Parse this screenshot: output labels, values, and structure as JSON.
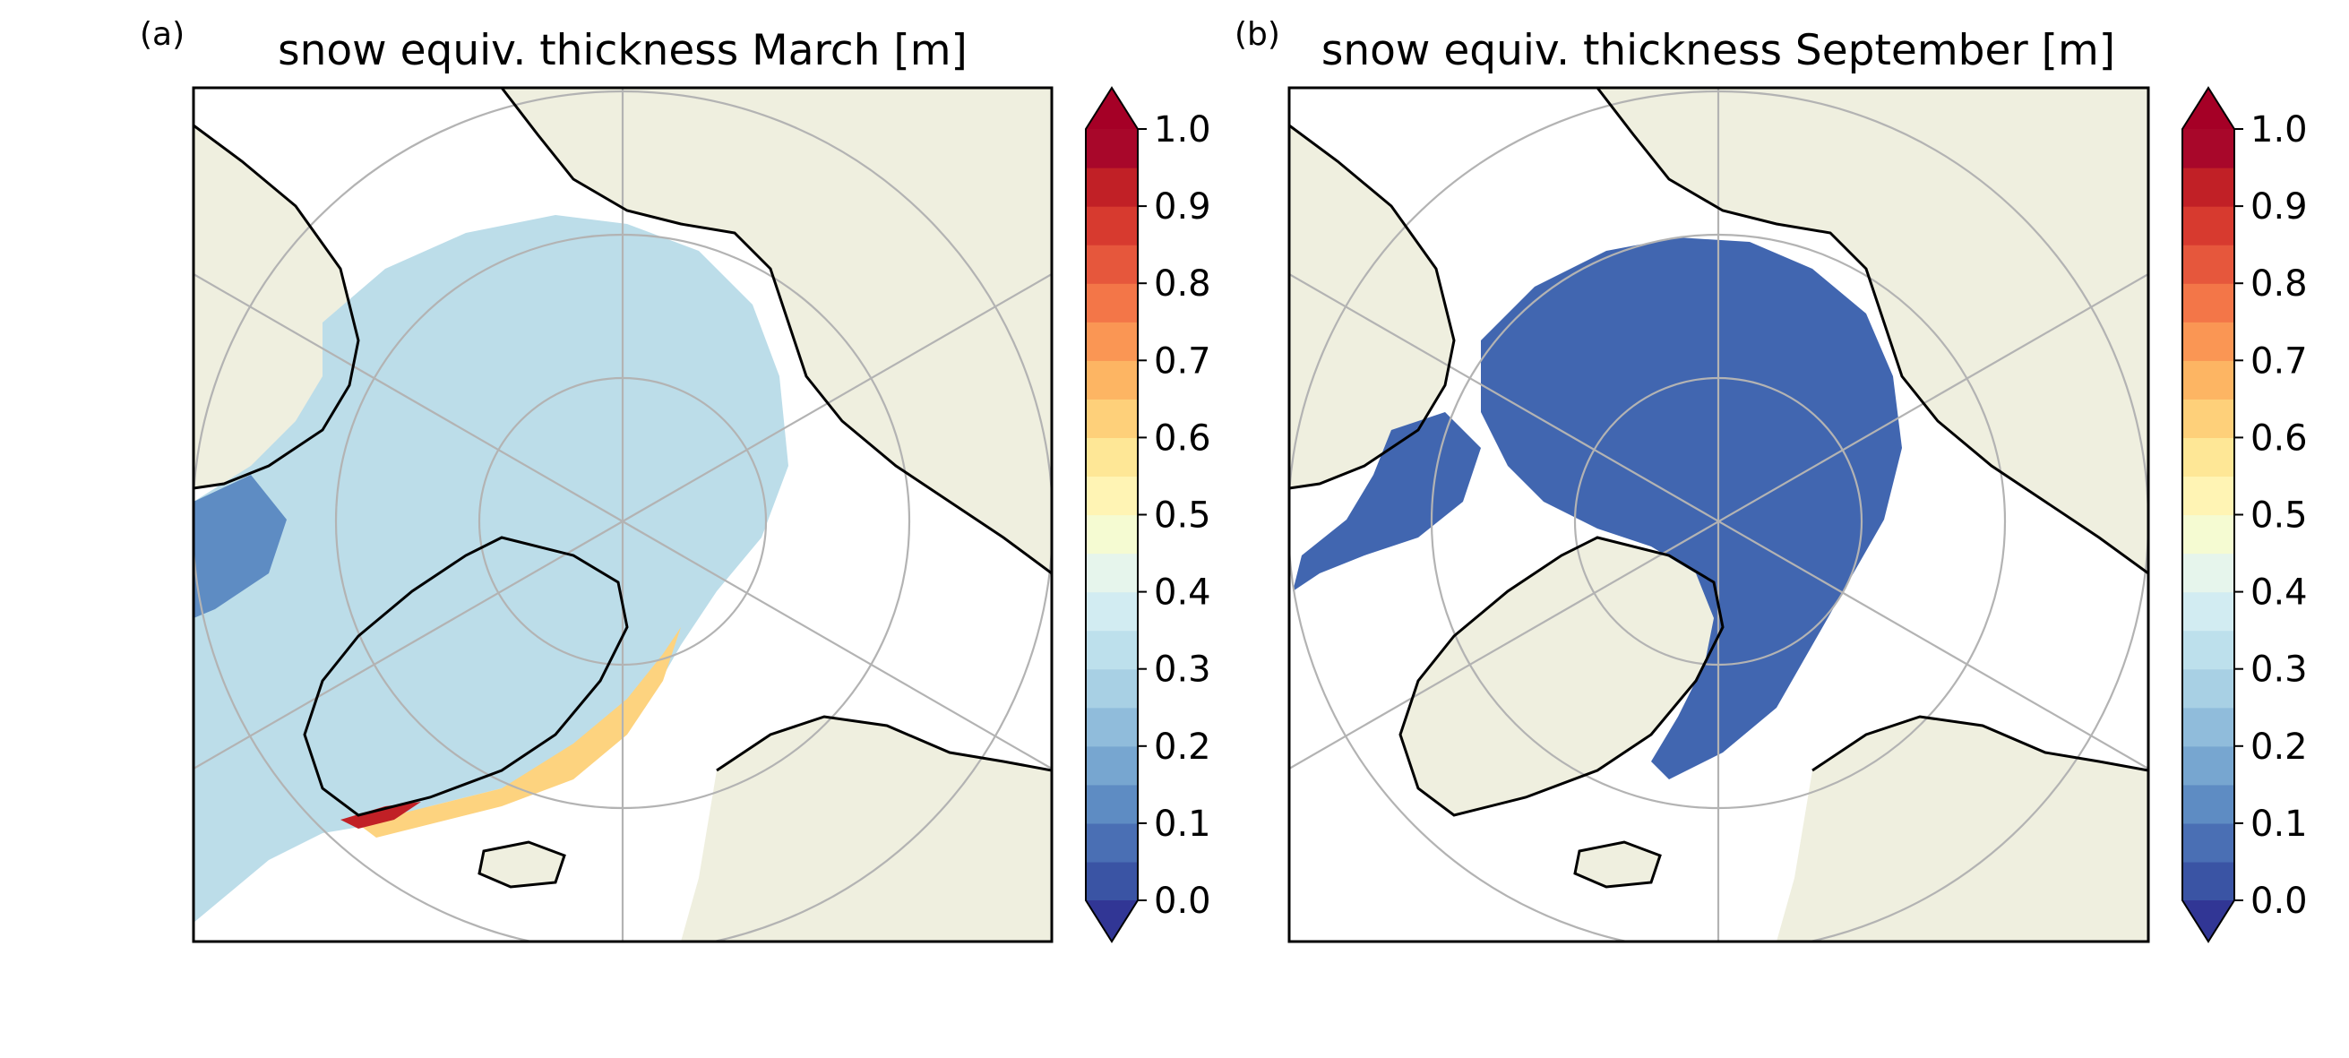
{
  "panels": [
    {
      "id": "march",
      "letter": "(a)",
      "title": "snow equiv. thickness March [m]",
      "ice_color_low": "#bcdde9",
      "ice_color_high": "#fdd37f"
    },
    {
      "id": "september",
      "letter": "(b)",
      "title": "snow equiv. thickness September [m]",
      "ice_color_low": "#4166b0",
      "ice_color_high": "#4166b0"
    }
  ],
  "colorbar": {
    "ticks": [
      "0.0",
      "0.1",
      "0.2",
      "0.3",
      "0.4",
      "0.5",
      "0.6",
      "0.7",
      "0.8",
      "0.9",
      "1.0"
    ],
    "levels": [
      0.0,
      0.05,
      0.1,
      0.15,
      0.2,
      0.25,
      0.3,
      0.35,
      0.4,
      0.45,
      0.5,
      0.55,
      0.6,
      0.65,
      0.7,
      0.75,
      0.8,
      0.85,
      0.9,
      0.95,
      1.0
    ],
    "colors": [
      "#3a54a4",
      "#4a6fb4",
      "#5e8cc3",
      "#77a6d0",
      "#90bcdb",
      "#a8d0e4",
      "#bde0ec",
      "#d2ecf2",
      "#e6f5ec",
      "#f5fbd2",
      "#fff4b4",
      "#fee796",
      "#fed07a",
      "#fdb563",
      "#fa9654",
      "#f37648",
      "#e6573c",
      "#d73a2f",
      "#c12026",
      "#a8072a"
    ],
    "under_color": "#313695",
    "over_color": "#a50026",
    "extend": "both"
  },
  "map_colors": {
    "land": "#efefdf",
    "coastline": "#000000",
    "grid": "#b3b3b3",
    "open_water": "#ffffff"
  }
}
